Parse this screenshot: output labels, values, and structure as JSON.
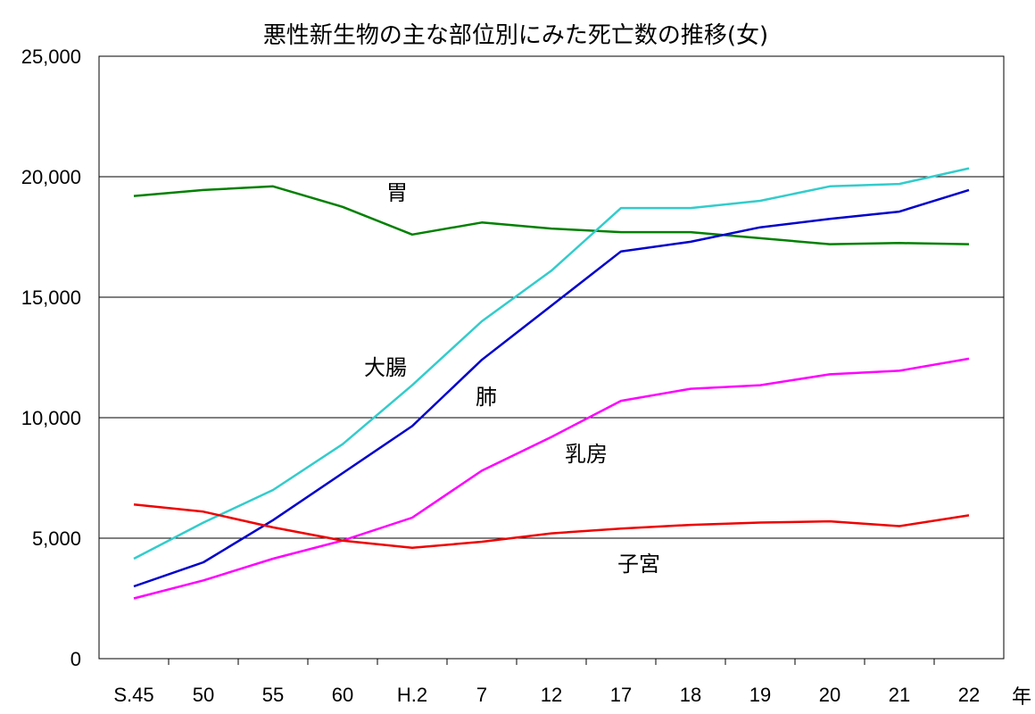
{
  "chart_data": {
    "type": "line",
    "title": "悪性新生物の主な部位別にみた死亡数の推移(女)",
    "xlabel": "",
    "ylabel": "",
    "x_unit": "年",
    "categories": [
      "S.45",
      "50",
      "55",
      "60",
      "H.2",
      "7",
      "12",
      "17",
      "18",
      "19",
      "20",
      "21",
      "22"
    ],
    "ylim": [
      0,
      25000
    ],
    "yticks": [
      0,
      5000,
      10000,
      15000,
      20000,
      25000
    ],
    "ytick_labels": [
      "0",
      "5,000",
      "10,000",
      "15,000",
      "20,000",
      "25,000"
    ],
    "grid": true,
    "legend": "none",
    "series": [
      {
        "name": "胃",
        "color": "#008000",
        "values": [
          19200,
          19450,
          19600,
          18750,
          17600,
          18100,
          17850,
          17700,
          17700,
          17450,
          17200,
          17250,
          17200
        ]
      },
      {
        "name": "大腸",
        "color": "#33cccc",
        "values": [
          4150,
          5650,
          7000,
          8900,
          11350,
          14000,
          16100,
          18700,
          18700,
          19000,
          19600,
          19700,
          20350
        ]
      },
      {
        "name": "肺",
        "color": "#0000cc",
        "values": [
          3000,
          4000,
          5750,
          7700,
          9650,
          12400,
          14650,
          16900,
          17300,
          17900,
          18250,
          18550,
          19450
        ]
      },
      {
        "name": "乳房",
        "color": "#ff00ff",
        "values": [
          2500,
          3250,
          4150,
          4900,
          5850,
          7800,
          9200,
          10700,
          11200,
          11350,
          11800,
          11950,
          12450
        ]
      },
      {
        "name": "子宮",
        "color": "#ee0000",
        "values": [
          6400,
          6100,
          5450,
          4900,
          4600,
          4850,
          5200,
          5400,
          5550,
          5650,
          5700,
          5500,
          5950
        ]
      }
    ]
  }
}
